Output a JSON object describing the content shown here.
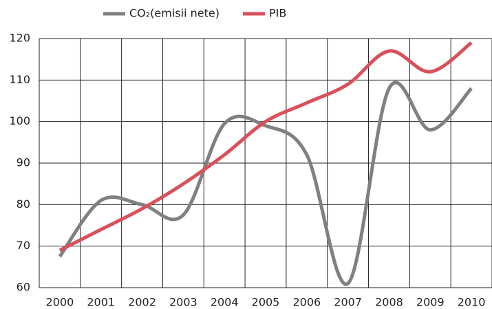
{
  "chart_data": {
    "type": "line",
    "categories": [
      "2000",
      "2001",
      "2002",
      "2003",
      "2004",
      "2005",
      "2006",
      "2007",
      "2008",
      "2009",
      "2010"
    ],
    "series": [
      {
        "name": "CO₂(emisii nete)",
        "color": "#808080",
        "values": [
          67.5,
          81,
          80,
          77.5,
          99.5,
          99,
          92,
          61,
          108,
          98,
          108
        ]
      },
      {
        "name": "PIB",
        "color": "#d9505a",
        "values": [
          69,
          74,
          79,
          85,
          92,
          100,
          104.5,
          109,
          117,
          112,
          119
        ]
      }
    ],
    "ylim": [
      60,
      120
    ],
    "yticks": [
      60,
      70,
      80,
      90,
      100,
      110,
      120
    ],
    "grid": true,
    "legend": "top"
  }
}
